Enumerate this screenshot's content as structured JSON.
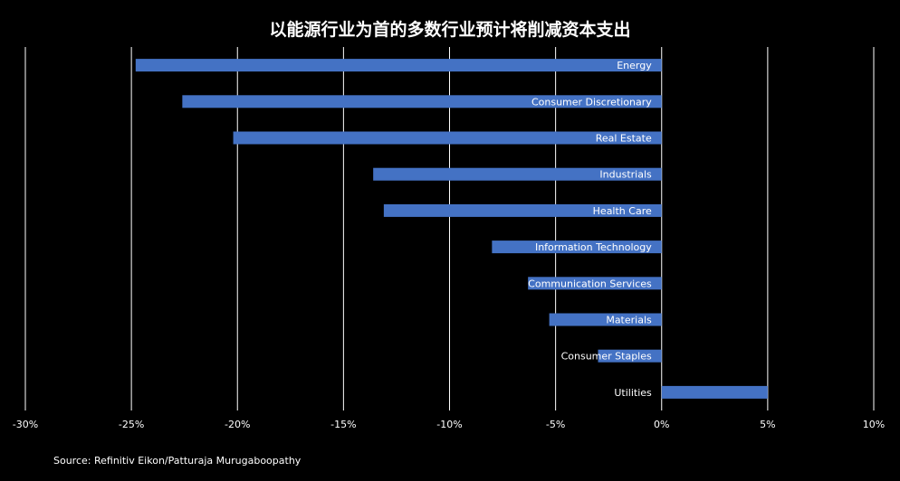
{
  "chart_data": {
    "type": "bar",
    "orientation": "horizontal",
    "title": "以能源行业为首的多数行业预计将削减资本支出",
    "categories": [
      "Energy",
      "Consumer Discretionary",
      "Real Estate",
      "Industrials",
      "Health Care",
      "Information Technology",
      "Communication Services",
      "Materials",
      "Consumer Staples",
      "Utilities"
    ],
    "values": [
      -24.8,
      -22.6,
      -20.2,
      -13.6,
      -13.1,
      -8.0,
      -6.3,
      -5.3,
      -3.0,
      5.0
    ],
    "x_ticks": [
      "-30%",
      "-25%",
      "-20%",
      "-15%",
      "-10%",
      "-5%",
      "0%",
      "5%",
      "10%"
    ],
    "xlim": [
      -30,
      10
    ],
    "grid": true,
    "legend": "none",
    "xlabel": "",
    "ylabel": "",
    "bar_color": "#4472C4",
    "grid_color": "#ffffff",
    "background_color": "#000000"
  },
  "source": "Source: Refinitiv Eikon/Patturaja Murugaboopathy"
}
